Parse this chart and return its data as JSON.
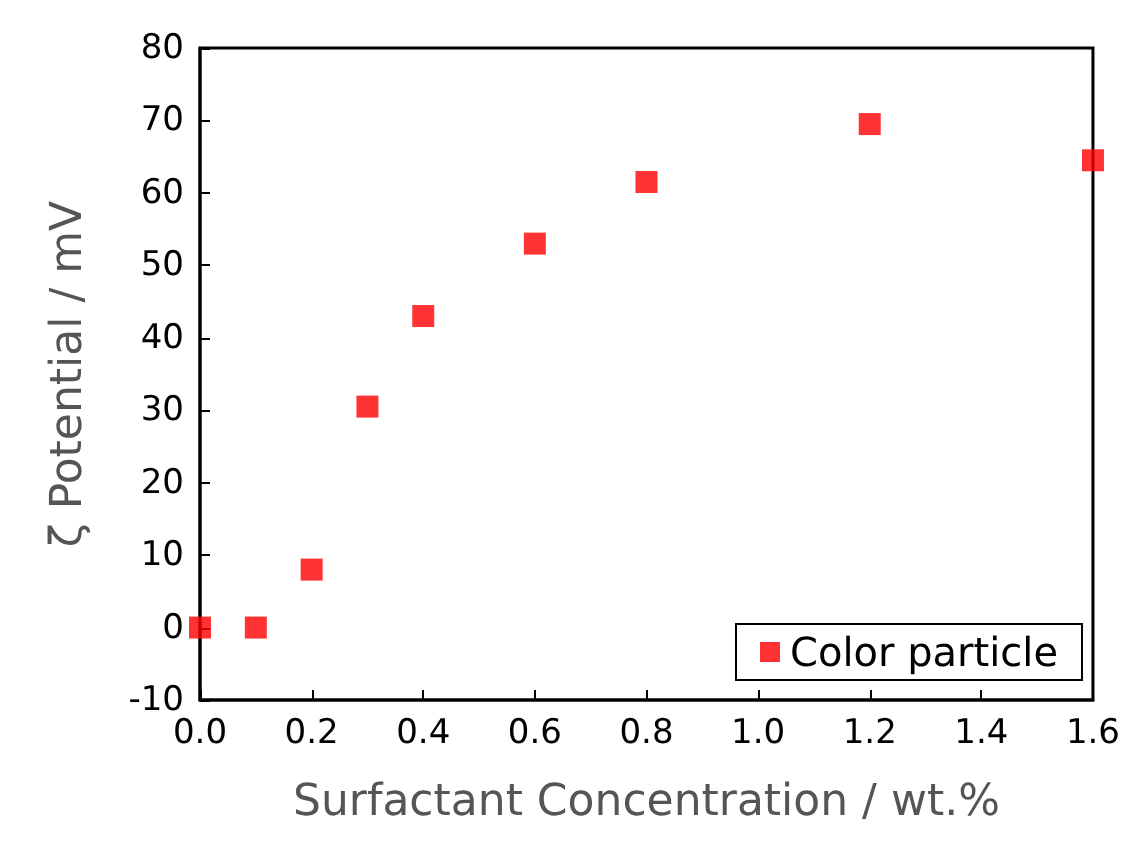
{
  "chart_data": {
    "type": "scatter",
    "xlabel": "Surfactant Concentration / wt.%",
    "ylabel": "ζ Potential / mV",
    "x": [
      0,
      0.1,
      0.2,
      0.3,
      0.4,
      0.6,
      0.8,
      1.2,
      1.6
    ],
    "series": [
      {
        "name": "Color particle",
        "color": "#ff0000",
        "values": [
          0,
          0,
          8,
          30.5,
          43,
          53,
          61.5,
          69.5,
          64.5
        ]
      }
    ],
    "xlim": [
      0,
      1.6
    ],
    "xticks": [
      {
        "value": 0,
        "label": "0.0"
      },
      0.2,
      0.4,
      0.6,
      0.8,
      {
        "value": 1,
        "label": "1.0"
      },
      1.2,
      1.4,
      1.6
    ],
    "ylim": [
      -10,
      80
    ],
    "yticks": [
      -10,
      0,
      10,
      20,
      30,
      40,
      50,
      60,
      70,
      80
    ],
    "marker": "square",
    "legend": "bottom right",
    "grid": false
  }
}
